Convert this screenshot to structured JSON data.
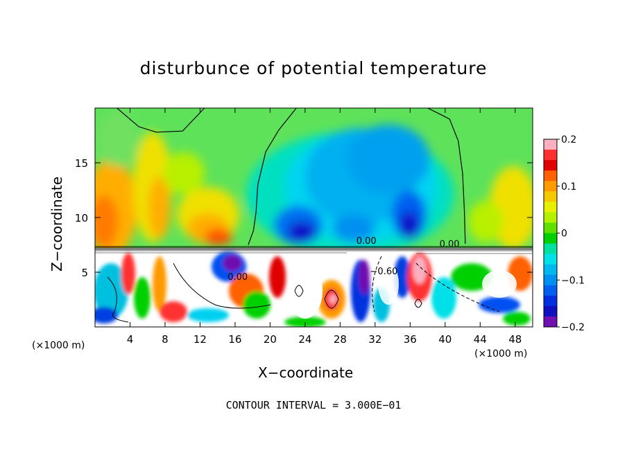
{
  "chart_data": {
    "type": "heatmap",
    "title": "disturbunce of potential temperature",
    "xlabel": "X−coordinate",
    "ylabel": "Z−coordinate",
    "x_unit_label": "(×1000 m)",
    "footer": "CONTOUR INTERVAL = 3.000E−01",
    "x_ticks": [
      4,
      8,
      12,
      16,
      20,
      24,
      28,
      32,
      36,
      40,
      44,
      48
    ],
    "x_tick_labels": [
      "4",
      "8",
      "12",
      "16",
      "20",
      "24",
      "28",
      "32",
      "36",
      "40",
      "44",
      "48"
    ],
    "y_ticks": [
      5,
      10,
      15
    ],
    "y_tick_labels": [
      "5",
      "10",
      "15"
    ],
    "xlim": [
      0,
      50
    ],
    "ylim": [
      0,
      20
    ],
    "colorbar": {
      "range": [
        -0.2,
        0.2
      ],
      "tick_values": [
        0.2,
        0.1,
        0,
        -0.1,
        -0.2
      ],
      "tick_labels": [
        "0.2",
        "0.1",
        "0",
        "−0.1",
        "−0.2"
      ],
      "colors": [
        "#fab0c0",
        "#ff3030",
        "#e00000",
        "#ff6000",
        "#ff9a00",
        "#f5c800",
        "#e6f000",
        "#b4f000",
        "#60e000",
        "#00d000",
        "#00e0a0",
        "#00e0e8",
        "#00b8f0",
        "#0090f0",
        "#0060f0",
        "#0030e0",
        "#1010c0",
        "#7010b0"
      ]
    },
    "contour_labels": [
      {
        "text": "0.00",
        "x": 31,
        "z": 7.6
      },
      {
        "text": "0.00",
        "x": 40.5,
        "z": 7.3
      },
      {
        "text": "0.00",
        "x": 16.3,
        "z": 4.3
      },
      {
        "text": "−0.60",
        "x": 33,
        "z": 4.8
      }
    ],
    "zero_contour": [
      {
        "x": 2.5,
        "z": 20
      },
      {
        "x": 5,
        "z": 18.3
      },
      {
        "x": 7,
        "z": 17.8
      },
      {
        "x": 10,
        "z": 17.9
      },
      {
        "x": 12.5,
        "z": 20
      },
      {
        "x": 23,
        "z": 20
      },
      {
        "x": 21,
        "z": 18
      },
      {
        "x": 19.5,
        "z": 16
      },
      {
        "x": 18.6,
        "z": 13
      },
      {
        "x": 18.4,
        "z": 10.5
      },
      {
        "x": 18.1,
        "z": 8.8
      },
      {
        "x": 17.5,
        "z": 7.5
      },
      {
        "x": 38,
        "z": 20
      },
      {
        "x": 40.5,
        "z": 19
      },
      {
        "x": 41.5,
        "z": 17
      },
      {
        "x": 42,
        "z": 14
      },
      {
        "x": 42.2,
        "z": 10.5
      },
      {
        "x": 42.3,
        "z": 7.6
      }
    ]
  }
}
